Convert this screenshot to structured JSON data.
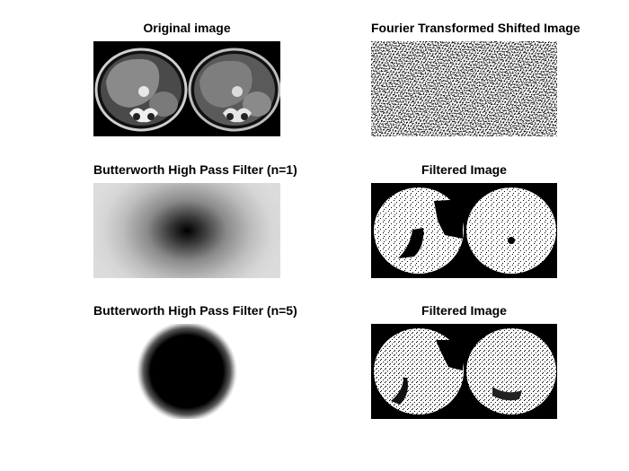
{
  "figure": {
    "panels": [
      {
        "id": "original",
        "title": "Original image"
      },
      {
        "id": "fourier",
        "title": "Fourier Transformed Shifted Image"
      },
      {
        "id": "butter1",
        "title": "Butterworth High Pass Filter (n=1)"
      },
      {
        "id": "filtered1",
        "title": "Filtered Image"
      },
      {
        "id": "butter5",
        "title": "Butterworth High Pass Filter (n=5)"
      },
      {
        "id": "filtered5",
        "title": "Filtered Image"
      }
    ]
  },
  "colors": {
    "background": "#ffffff",
    "image_black": "#000000",
    "image_white": "#ffffff"
  }
}
